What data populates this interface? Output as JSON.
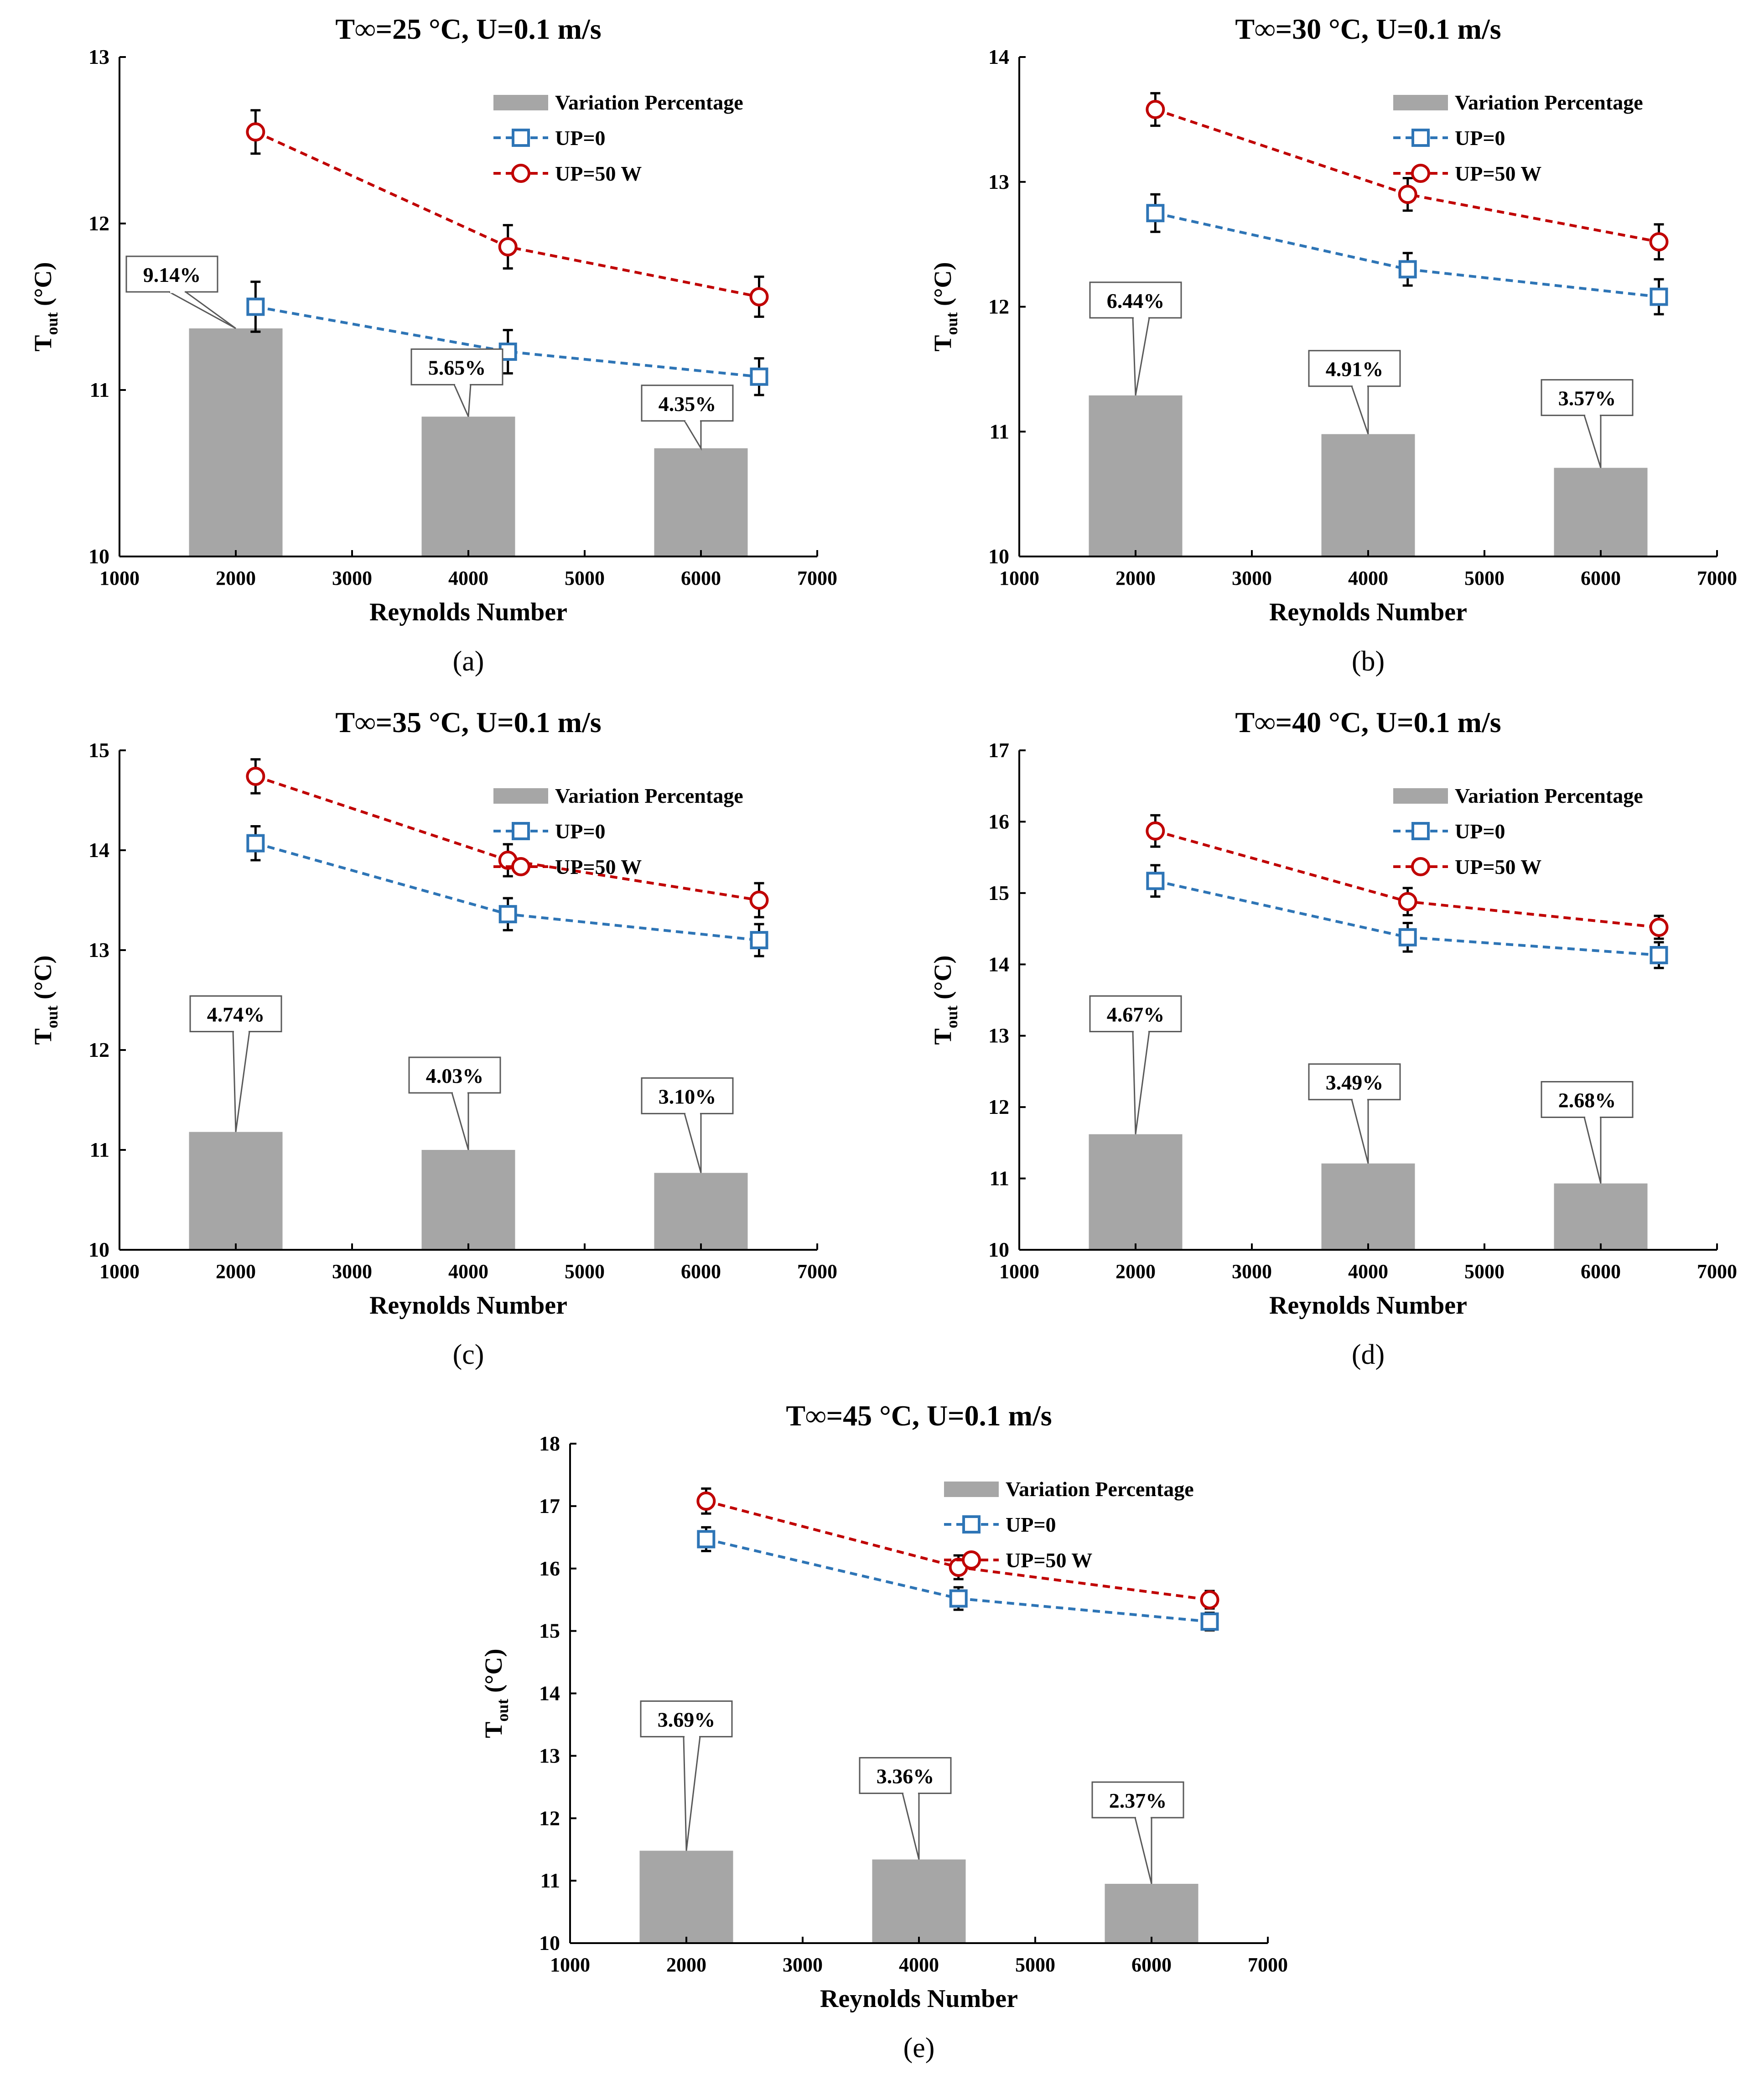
{
  "figure": {
    "colors": {
      "bar": "#a6a6a6",
      "up0": "#2e75b6",
      "up50": "#c00000",
      "errorbar": "#000000",
      "axis": "#000000",
      "callout_border": "#595959"
    }
  },
  "chart_data": [
    {
      "type": "bar+line",
      "panel_label": "(a)",
      "title": "T∞=25 °C, U=0.1 m/s",
      "xlabel": "Reynolds Number",
      "ylabel_main": "T",
      "ylabel_sub": "out",
      "ylabel_unit": " (°C)",
      "xlim": [
        1000,
        7000
      ],
      "ylim": [
        10,
        13
      ],
      "xticks": [
        "1000",
        "2000",
        "3000",
        "4000",
        "5000",
        "6000",
        "7000"
      ],
      "yticks": [
        "10",
        "11",
        "12",
        "13"
      ],
      "legend": [
        "Variation Percentage",
        "UP=0",
        "UP=50 W"
      ],
      "bars": [
        {
          "x": 2000,
          "top": 11.37,
          "label": "9.14%"
        },
        {
          "x": 4000,
          "top": 10.84,
          "label": "5.65%"
        },
        {
          "x": 6000,
          "top": 10.65,
          "label": "4.35%"
        }
      ],
      "series": [
        {
          "name": "UP=0",
          "x": [
            2170,
            4340,
            6500
          ],
          "y": [
            11.5,
            11.23,
            11.08
          ],
          "err": [
            0.15,
            0.13,
            0.11
          ]
        },
        {
          "name": "UP=50 W",
          "x": [
            2170,
            4340,
            6500
          ],
          "y": [
            12.55,
            11.86,
            11.56
          ],
          "err": [
            0.13,
            0.13,
            0.12
          ]
        }
      ]
    },
    {
      "type": "bar+line",
      "panel_label": "(b)",
      "title": "T∞=30 °C, U=0.1 m/s",
      "xlabel": "Reynolds Number",
      "ylabel_main": "T",
      "ylabel_sub": "out",
      "ylabel_unit": " (°C)",
      "xlim": [
        1000,
        7000
      ],
      "ylim": [
        10,
        14
      ],
      "xticks": [
        "1000",
        "2000",
        "3000",
        "4000",
        "5000",
        "6000",
        "7000"
      ],
      "yticks": [
        "10",
        "11",
        "12",
        "13",
        "14"
      ],
      "legend": [
        "Variation Percentage",
        "UP=0",
        "UP=50 W"
      ],
      "bars": [
        {
          "x": 2000,
          "top": 11.29,
          "label": "6.44%"
        },
        {
          "x": 4000,
          "top": 10.98,
          "label": "4.91%"
        },
        {
          "x": 6000,
          "top": 10.71,
          "label": "3.57%"
        }
      ],
      "series": [
        {
          "name": "UP=0",
          "x": [
            2170,
            4340,
            6500
          ],
          "y": [
            12.75,
            12.3,
            12.08
          ],
          "err": [
            0.15,
            0.13,
            0.14
          ]
        },
        {
          "name": "UP=50 W",
          "x": [
            2170,
            4340,
            6500
          ],
          "y": [
            13.58,
            12.9,
            12.52
          ],
          "err": [
            0.13,
            0.13,
            0.14
          ]
        }
      ]
    },
    {
      "type": "bar+line",
      "panel_label": "(c)",
      "title": "T∞=35 °C, U=0.1 m/s",
      "xlabel": "Reynolds Number",
      "ylabel_main": "T",
      "ylabel_sub": "out",
      "ylabel_unit": " (°C)",
      "xlim": [
        1000,
        7000
      ],
      "ylim": [
        10,
        15
      ],
      "xticks": [
        "1000",
        "2000",
        "3000",
        "4000",
        "5000",
        "6000",
        "7000"
      ],
      "yticks": [
        "10",
        "11",
        "12",
        "13",
        "14",
        "15"
      ],
      "legend": [
        "Variation Percentage",
        "UP=0",
        "UP=50 W"
      ],
      "bars": [
        {
          "x": 2000,
          "top": 11.18,
          "label": "4.74%"
        },
        {
          "x": 4000,
          "top": 11.0,
          "label": "4.03%"
        },
        {
          "x": 6000,
          "top": 10.77,
          "label": "3.10%"
        }
      ],
      "series": [
        {
          "name": "UP=0",
          "x": [
            2170,
            4340,
            6500
          ],
          "y": [
            14.07,
            13.36,
            13.1
          ],
          "err": [
            0.17,
            0.16,
            0.16
          ]
        },
        {
          "name": "UP=50 W",
          "x": [
            2170,
            4340,
            6500
          ],
          "y": [
            14.74,
            13.9,
            13.5
          ],
          "err": [
            0.17,
            0.16,
            0.17
          ]
        }
      ]
    },
    {
      "type": "bar+line",
      "panel_label": "(d)",
      "title": "T∞=40 °C, U=0.1 m/s",
      "xlabel": "Reynolds Number",
      "ylabel_main": "T",
      "ylabel_sub": "out",
      "ylabel_unit": " (°C)",
      "xlim": [
        1000,
        7000
      ],
      "ylim": [
        10,
        17
      ],
      "xticks": [
        "1000",
        "2000",
        "3000",
        "4000",
        "5000",
        "6000",
        "7000"
      ],
      "yticks": [
        "10",
        "11",
        "12",
        "13",
        "14",
        "15",
        "16",
        "17"
      ],
      "legend": [
        "Variation Percentage",
        "UP=0",
        "UP=50 W"
      ],
      "bars": [
        {
          "x": 2000,
          "top": 11.62,
          "label": "4.67%"
        },
        {
          "x": 4000,
          "top": 11.21,
          "label": "3.49%"
        },
        {
          "x": 6000,
          "top": 10.93,
          "label": "2.68%"
        }
      ],
      "series": [
        {
          "name": "UP=0",
          "x": [
            2170,
            4340,
            6500
          ],
          "y": [
            15.17,
            14.38,
            14.13
          ],
          "err": [
            0.22,
            0.2,
            0.18
          ]
        },
        {
          "name": "UP=50 W",
          "x": [
            2170,
            4340,
            6500
          ],
          "y": [
            15.87,
            14.88,
            14.52
          ],
          "err": [
            0.22,
            0.19,
            0.16
          ]
        }
      ]
    },
    {
      "type": "bar+line",
      "panel_label": "(e)",
      "title": "T∞=45 °C, U=0.1 m/s",
      "xlabel": "Reynolds Number",
      "ylabel_main": "T",
      "ylabel_sub": "out",
      "ylabel_unit": " (°C)",
      "xlim": [
        1000,
        7000
      ],
      "ylim": [
        10,
        18
      ],
      "xticks": [
        "1000",
        "2000",
        "3000",
        "4000",
        "5000",
        "6000",
        "7000"
      ],
      "yticks": [
        "10",
        "11",
        "12",
        "13",
        "14",
        "15",
        "16",
        "17",
        "18"
      ],
      "legend": [
        "Variation Percentage",
        "UP=0",
        "UP=50 W"
      ],
      "bars": [
        {
          "x": 2000,
          "top": 11.48,
          "label": "3.69%"
        },
        {
          "x": 4000,
          "top": 11.34,
          "label": "3.36%"
        },
        {
          "x": 6000,
          "top": 10.95,
          "label": "2.37%"
        }
      ],
      "series": [
        {
          "name": "UP=0",
          "x": [
            2170,
            4340,
            6500
          ],
          "y": [
            16.47,
            15.52,
            15.15
          ],
          "err": [
            0.19,
            0.18,
            0.14
          ]
        },
        {
          "name": "UP=50 W",
          "x": [
            2170,
            4340,
            6500
          ],
          "y": [
            17.08,
            16.02,
            15.5
          ],
          "err": [
            0.2,
            0.19,
            0.14
          ]
        }
      ]
    }
  ]
}
